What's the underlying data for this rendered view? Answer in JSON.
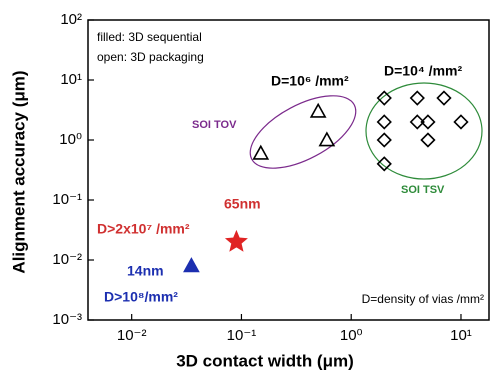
{
  "chart_data": {
    "type": "scatter",
    "xlabel": "3D contact width (μm)",
    "ylabel": "Alignment accuracy (μm)",
    "xscale": "log",
    "yscale": "log",
    "xlim": [
      0.004,
      18
    ],
    "ylim": [
      0.001,
      100
    ],
    "xticks": [
      {
        "value": 0.01,
        "label": "10⁻²"
      },
      {
        "value": 0.1,
        "label": "10⁻¹"
      },
      {
        "value": 1,
        "label": "10⁰"
      },
      {
        "value": 10,
        "label": "10¹"
      }
    ],
    "yticks": [
      {
        "value": 0.001,
        "label": "10⁻³"
      },
      {
        "value": 0.01,
        "label": "10⁻²"
      },
      {
        "value": 0.1,
        "label": "10⁻¹"
      },
      {
        "value": 1,
        "label": "10⁰"
      },
      {
        "value": 10,
        "label": "10¹"
      },
      {
        "value": 100,
        "label": "10²"
      }
    ],
    "series": [
      {
        "name": "SOI TOV",
        "color": "#000000",
        "label_color": "#7b2a8c",
        "marker": "triangle",
        "filled": false,
        "x": [
          0.15,
          0.5,
          0.6
        ],
        "values": [
          0.6,
          3,
          1
        ]
      },
      {
        "name": "SOI TSV",
        "color": "#000000",
        "label_color": "#2e8b3a",
        "marker": "diamond",
        "filled": false,
        "x": [
          2,
          4,
          7,
          2,
          4,
          5,
          10,
          2,
          5,
          2
        ],
        "values": [
          5,
          5,
          5,
          2,
          2,
          2,
          2,
          1,
          1,
          0.4
        ]
      },
      {
        "name": "65nm",
        "color": "#e02424",
        "label_color": "#d03030",
        "marker": "star",
        "filled": true,
        "x": [
          0.09
        ],
        "values": [
          0.02
        ]
      },
      {
        "name": "14nm",
        "color": "#1c2fb0",
        "label_color": "#1c2fb0",
        "marker": "triangle",
        "filled": true,
        "x": [
          0.035
        ],
        "values": [
          0.008
        ]
      }
    ],
    "annotations": [
      {
        "text": "filled: 3D sequential",
        "color": "#000000"
      },
      {
        "text": "open: 3D packaging",
        "color": "#000000"
      },
      {
        "text": "D=10⁶ /mm²",
        "color": "#000000"
      },
      {
        "text": "D=10⁴ /mm²",
        "color": "#000000"
      },
      {
        "text": "D>2x10⁷ /mm²",
        "color": "#d03030"
      },
      {
        "text": "D>10⁸/mm²",
        "color": "#1c2fb0"
      },
      {
        "text": "D=density of vias /mm²",
        "color": "#000000"
      }
    ]
  }
}
